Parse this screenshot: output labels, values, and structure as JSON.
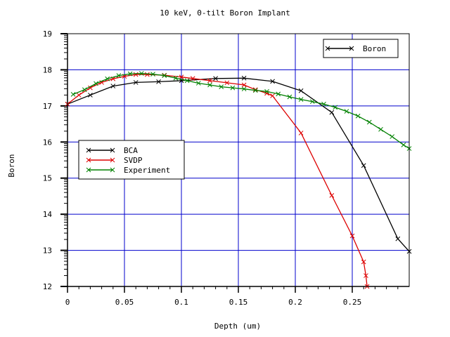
{
  "chart_data": {
    "type": "line",
    "title": "10 keV, 0-tilt Boron Implant",
    "xlabel": "Depth (um)",
    "ylabel": "Boron",
    "xlim": [
      0,
      0.3
    ],
    "ylim": [
      12,
      19
    ],
    "x_ticks": [
      {
        "value": 0,
        "label": "0"
      },
      {
        "value": 0.05,
        "label": "0.05"
      },
      {
        "value": 0.1,
        "label": "0.1"
      },
      {
        "value": 0.15,
        "label": "0.15"
      },
      {
        "value": 0.2,
        "label": "0.2"
      },
      {
        "value": 0.25,
        "label": "0.25"
      }
    ],
    "y_ticks": [
      {
        "value": 12,
        "label": "12"
      },
      {
        "value": 13,
        "label": "13"
      },
      {
        "value": 14,
        "label": "14"
      },
      {
        "value": 15,
        "label": "15"
      },
      {
        "value": 16,
        "label": "16"
      },
      {
        "value": 17,
        "label": "17"
      },
      {
        "value": 18,
        "label": "18"
      },
      {
        "value": 19,
        "label": "19"
      }
    ],
    "grid": true,
    "grid_color": "#0000cc",
    "legends": [
      {
        "placement": "top-right",
        "entries": [
          "Boron"
        ]
      },
      {
        "placement": "center-left",
        "entries": [
          "BCA",
          "SVDP",
          "Experiment"
        ]
      }
    ],
    "series": [
      {
        "name": "Boron",
        "color": "#000000",
        "marker": "x",
        "x": [],
        "y": []
      },
      {
        "name": "BCA",
        "color": "#000000",
        "marker": "x",
        "x": [
          0,
          0.02,
          0.04,
          0.06,
          0.08,
          0.1,
          0.13,
          0.155,
          0.18,
          0.205,
          0.232,
          0.26,
          0.29,
          0.3
        ],
        "y": [
          17.05,
          17.3,
          17.55,
          17.65,
          17.67,
          17.7,
          17.76,
          17.77,
          17.68,
          17.42,
          16.82,
          15.35,
          13.32,
          12.97
        ]
      },
      {
        "name": "SVDP",
        "color": "#dd0000",
        "marker": "x",
        "x": [
          0,
          0.01,
          0.02,
          0.03,
          0.04,
          0.05,
          0.06,
          0.07,
          0.085,
          0.1,
          0.11,
          0.125,
          0.14,
          0.155,
          0.165,
          0.175,
          0.18,
          0.205,
          0.232,
          0.25,
          0.26,
          0.262,
          0.263
        ],
        "y": [
          17.05,
          17.3,
          17.5,
          17.65,
          17.75,
          17.82,
          17.87,
          17.87,
          17.85,
          17.8,
          17.76,
          17.7,
          17.64,
          17.58,
          17.45,
          17.35,
          17.28,
          16.25,
          14.52,
          13.4,
          12.68,
          12.3,
          12.0
        ]
      },
      {
        "name": "Experiment",
        "color": "#008000",
        "marker": "x",
        "x": [
          0.005,
          0.015,
          0.025,
          0.035,
          0.045,
          0.055,
          0.065,
          0.075,
          0.085,
          0.095,
          0.105,
          0.115,
          0.125,
          0.135,
          0.145,
          0.155,
          0.165,
          0.175,
          0.185,
          0.195,
          0.205,
          0.215,
          0.225,
          0.235,
          0.245,
          0.255,
          0.265,
          0.275,
          0.285,
          0.295,
          0.3
        ],
        "y": [
          17.32,
          17.45,
          17.62,
          17.75,
          17.84,
          17.89,
          17.9,
          17.88,
          17.84,
          17.77,
          17.7,
          17.63,
          17.58,
          17.53,
          17.5,
          17.47,
          17.43,
          17.4,
          17.33,
          17.25,
          17.18,
          17.12,
          17.05,
          16.96,
          16.85,
          16.72,
          16.55,
          16.35,
          16.15,
          15.92,
          15.82
        ]
      }
    ]
  }
}
